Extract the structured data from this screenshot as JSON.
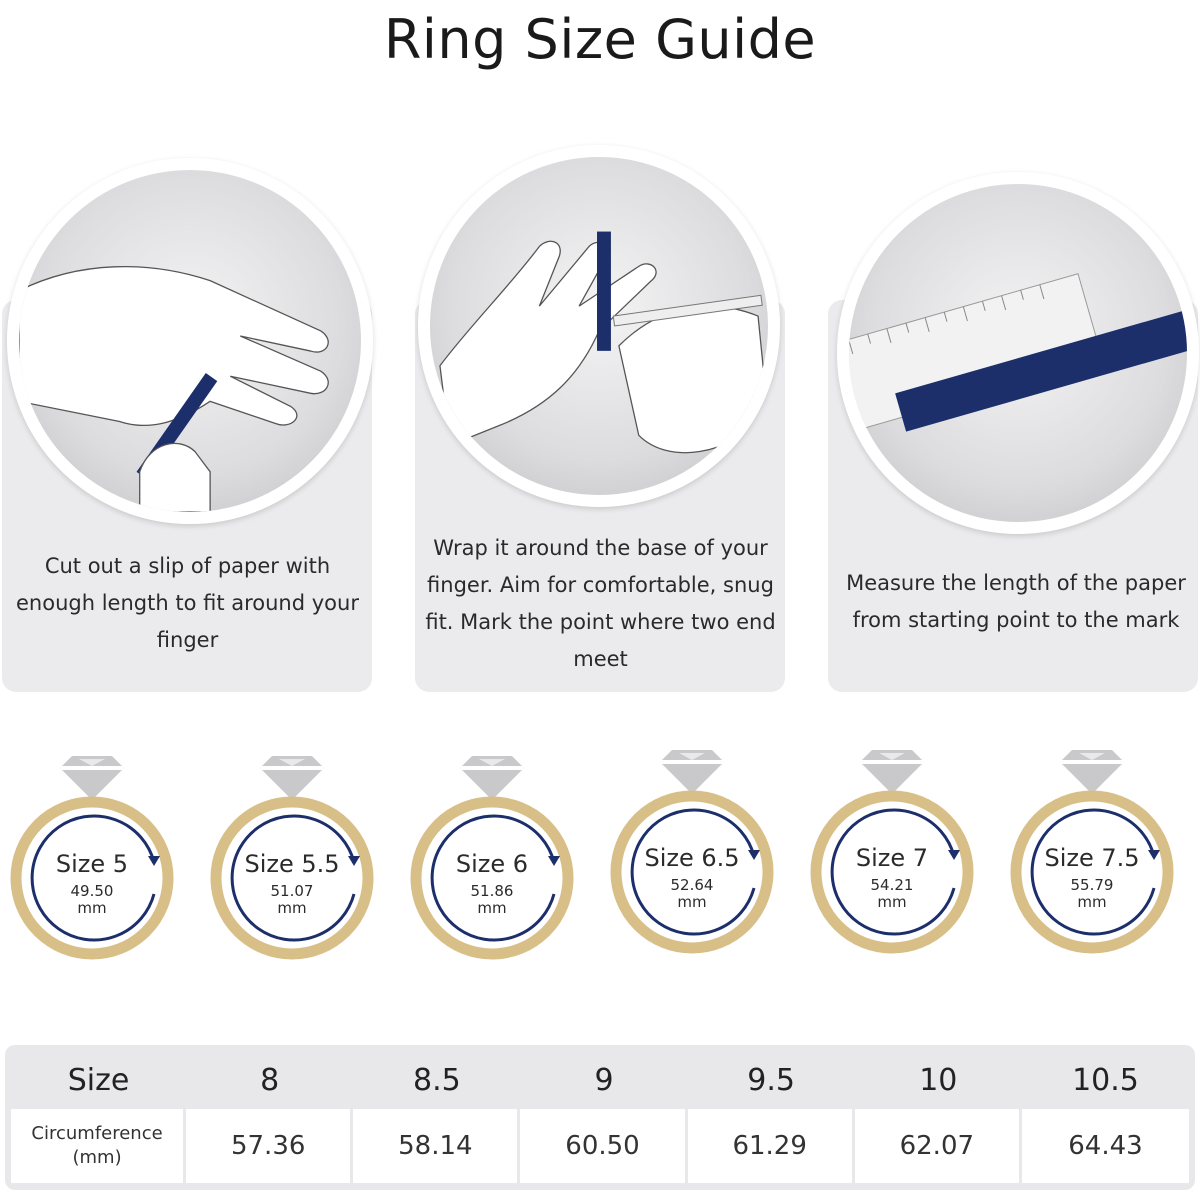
{
  "title": "Ring Size Guide",
  "steps": [
    {
      "text": "Cut out a slip of paper with enough length to fit around your finger",
      "illustration": "hand-holding-paper-strip"
    },
    {
      "text": "Wrap it around the base of your finger. Aim for comfortable, snug fit. Mark the point where two end meet",
      "illustration": "wrapping-strip-with-pen"
    },
    {
      "text": "Measure the length of the paper from starting point to the mark",
      "illustration": "ruler-and-strip"
    }
  ],
  "rings": [
    {
      "size": "Size 5",
      "mm": "49.50",
      "unit": "mm"
    },
    {
      "size": "Size 5.5",
      "mm": "51.07",
      "unit": "mm"
    },
    {
      "size": "Size 6",
      "mm": "51.86",
      "unit": "mm"
    },
    {
      "size": "Size 6.5",
      "mm": "52.64",
      "unit": "mm"
    },
    {
      "size": "Size 7",
      "mm": "54.21",
      "unit": "mm"
    },
    {
      "size": "Size 7.5",
      "mm": "55.79",
      "unit": "mm"
    }
  ],
  "table": {
    "size_header": "Size",
    "circ_header_line1": "Circumference",
    "circ_header_line2": "(mm)",
    "sizes": [
      "8",
      "8.5",
      "9",
      "9.5",
      "10",
      "10.5"
    ],
    "circumferences": [
      "57.36",
      "58.14",
      "60.50",
      "61.29",
      "62.07",
      "64.43"
    ]
  },
  "colors": {
    "gold": "#d8bf88",
    "navy": "#1c2f6b",
    "diamond": "#c9c9cc",
    "card": "#ebebed"
  }
}
